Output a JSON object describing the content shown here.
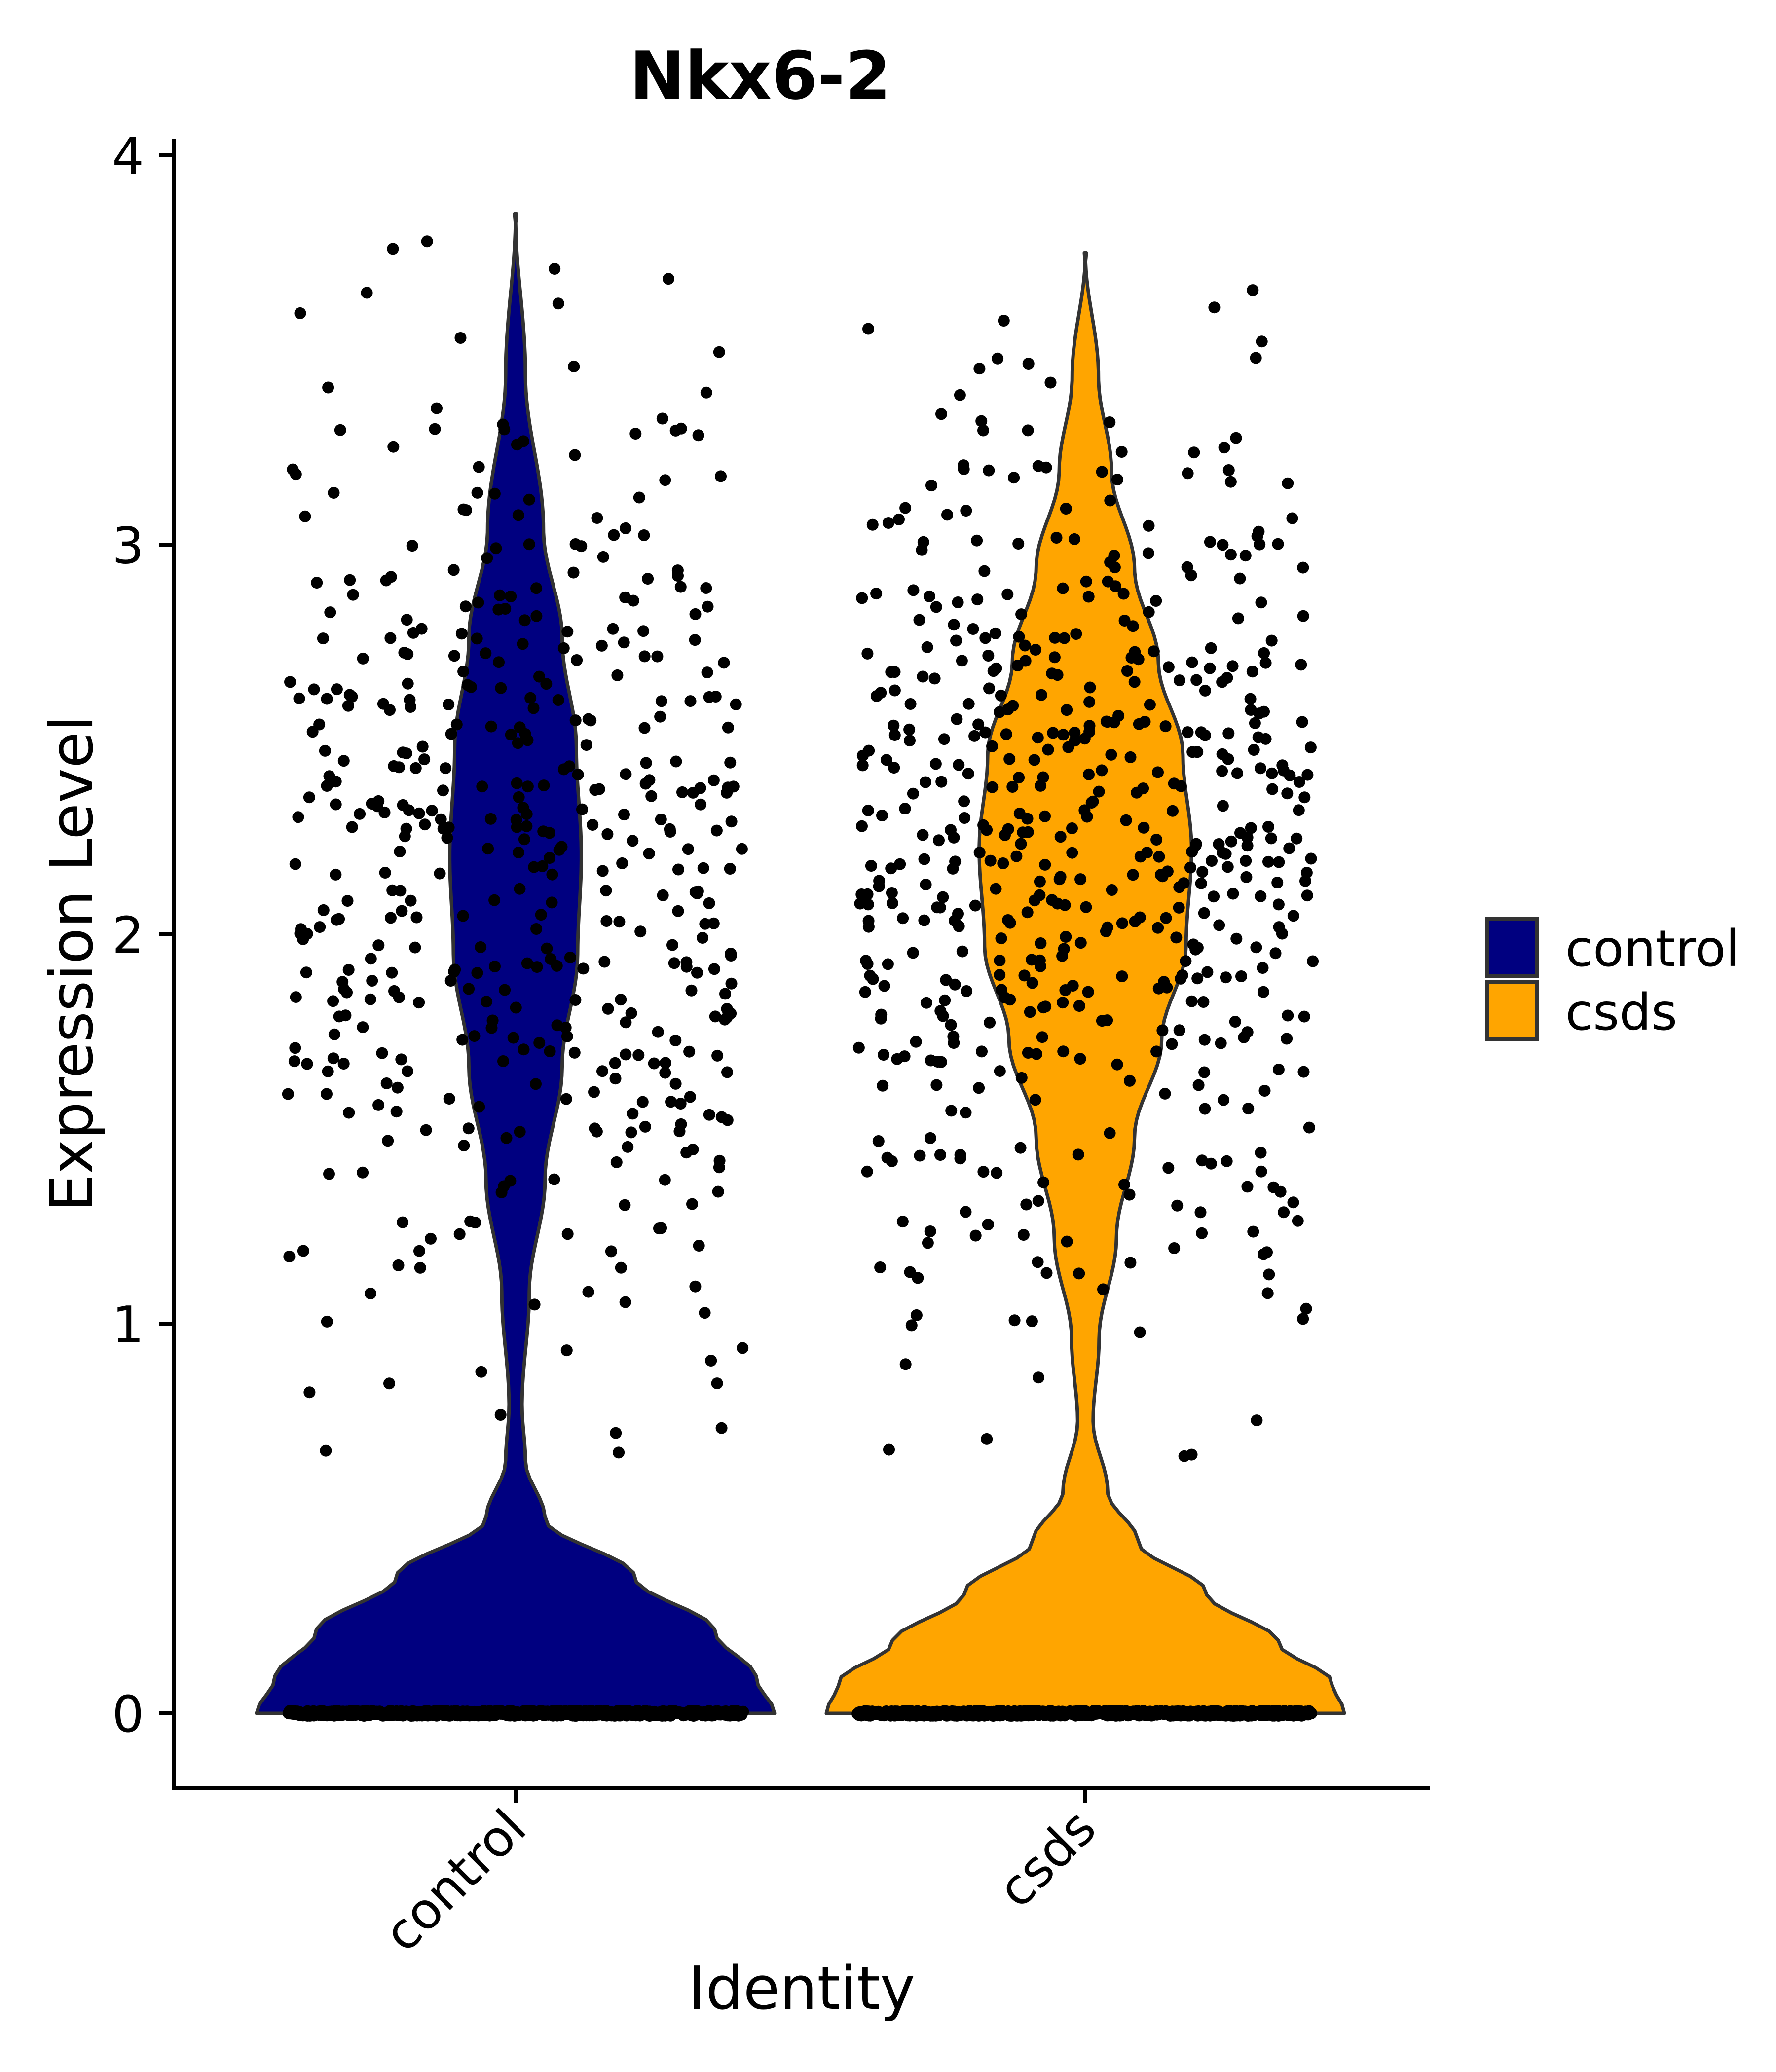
{
  "chart_data": {
    "type": "violin",
    "title": "Nkx6-2",
    "xlabel": "Identity",
    "ylabel": "Expression Level",
    "categories": [
      "control",
      "csds"
    ],
    "ylim": [
      -0.19,
      4.04
    ],
    "yticks": [
      0,
      1,
      2,
      3,
      4
    ],
    "ytick_labels": [
      "0",
      "1",
      "2",
      "3",
      "4"
    ],
    "grid": false,
    "legend": {
      "position": "right",
      "entries": [
        {
          "label": "control",
          "color": "#000080"
        },
        {
          "label": "csds",
          "color": "#FFA500"
        }
      ]
    },
    "outline_color": "#333333",
    "point_color": "#000000",
    "jitter_width": 0.4,
    "series": [
      {
        "name": "control",
        "color": "#000080",
        "max_value": 3.85,
        "approx_nonzero_points": 460,
        "approx_zero_points": 900,
        "density_profile": {
          "values": [
            0,
            0.09,
            0.21,
            0.35,
            0.5,
            0.65,
            0.79,
            1.08,
            1.37,
            1.66,
            1.95,
            2.2,
            2.48,
            2.76,
            3.04,
            3.44,
            3.85
          ],
          "density": [
            1.0,
            0.93,
            0.77,
            0.46,
            0.114,
            0.038,
            0.025,
            0.053,
            0.114,
            0.18,
            0.24,
            0.254,
            0.235,
            0.18,
            0.108,
            0.038,
            0.0
          ]
        }
      },
      {
        "name": "csds",
        "color": "#FFA500",
        "max_value": 3.75,
        "approx_nonzero_points": 560,
        "approx_zero_points": 900,
        "density_profile": {
          "values": [
            0,
            0.08,
            0.18,
            0.31,
            0.44,
            0.57,
            0.75,
            0.96,
            1.22,
            1.48,
            1.73,
            1.97,
            2.22,
            2.46,
            2.7,
            2.94,
            3.19,
            3.43,
            3.75
          ],
          "density": [
            1.0,
            0.952,
            0.747,
            0.467,
            0.204,
            0.086,
            0.03,
            0.053,
            0.12,
            0.19,
            0.295,
            0.389,
            0.41,
            0.377,
            0.282,
            0.19,
            0.101,
            0.051,
            0.0
          ]
        }
      }
    ]
  }
}
